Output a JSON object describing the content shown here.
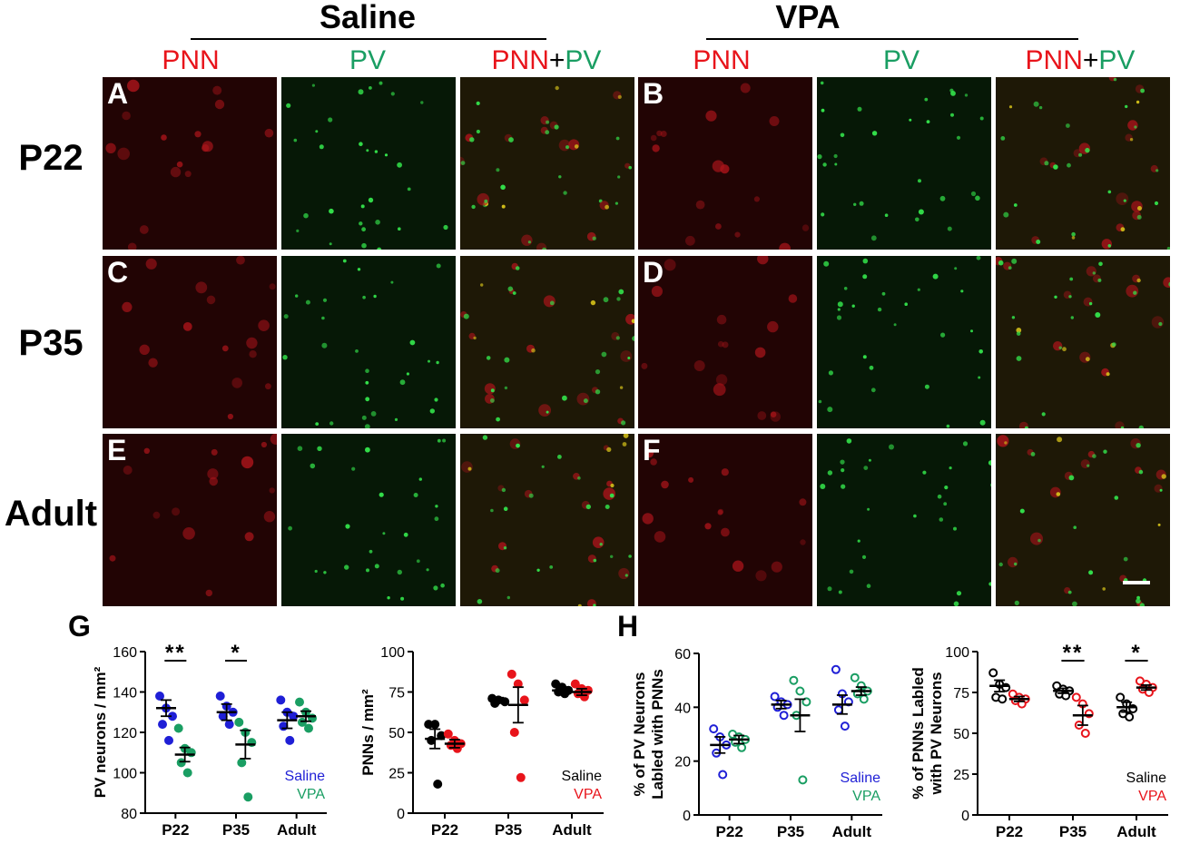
{
  "groups": [
    "Saline",
    "VPA"
  ],
  "columns": {
    "pnn": "PNN",
    "pv": "PV",
    "merge_a": "PNN",
    "merge_plus": "+",
    "merge_b": "PV"
  },
  "rows": [
    "P22",
    "P35",
    "Adult"
  ],
  "panel_letters": [
    "A",
    "B",
    "C",
    "D",
    "E",
    "F"
  ],
  "figure_letters": {
    "g": "G",
    "h": "H"
  },
  "colors": {
    "red": "#e8141b",
    "green": "#1a9e63",
    "blue": "#1f1fd6",
    "black": "#000000"
  },
  "chart_data": [
    {
      "id": "g1",
      "type": "scatter",
      "ylabel": "PV neurons / mm²",
      "ylim": [
        80,
        160
      ],
      "yticks": [
        80,
        100,
        120,
        140,
        160
      ],
      "categories": [
        "P22",
        "P35",
        "Adult"
      ],
      "legend": [
        "Saline",
        "VPA"
      ],
      "legend_placement": "bottom-right",
      "series": [
        {
          "name": "Saline",
          "color": "#1f1fd6",
          "filled": true,
          "points": [
            [
              138,
              132,
              128,
              124,
              116
            ],
            [
              138,
              133,
              130,
              128,
              124
            ],
            [
              136,
              130,
              128,
              123,
              116
            ]
          ],
          "mean": [
            132,
            130,
            126
          ],
          "sem": [
            4,
            4,
            4
          ]
        },
        {
          "name": "VPA",
          "color": "#1a9e63",
          "filled": true,
          "points": [
            [
              122,
              112,
              110,
              105,
              100
            ],
            [
              125,
              120,
              115,
              105,
              88
            ],
            [
              135,
              130,
              127,
              125,
              122
            ]
          ],
          "mean": [
            109,
            114,
            128
          ],
          "sem": [
            3.5,
            7,
            2.5
          ]
        }
      ],
      "significance": [
        {
          "category": "P22",
          "label": "**"
        },
        {
          "category": "P35",
          "label": "*"
        }
      ]
    },
    {
      "id": "g2",
      "type": "scatter",
      "ylabel": "PNNs / mm²",
      "ylim": [
        0,
        100
      ],
      "yticks": [
        0,
        25,
        50,
        75,
        100
      ],
      "categories": [
        "P22",
        "P35",
        "Adult"
      ],
      "legend": [
        "Saline",
        "VPA"
      ],
      "legend_placement": "bottom-right",
      "series": [
        {
          "name": "Saline",
          "color": "#000000",
          "filled": true,
          "points": [
            [
              55,
              55,
              48,
              45,
              18
            ],
            [
              71,
              70,
              69,
              68
            ],
            [
              80,
              78,
              76,
              75,
              74
            ]
          ],
          "mean": [
            46,
            70,
            76
          ],
          "sem": [
            6,
            1.5,
            2
          ]
        },
        {
          "name": "VPA",
          "color": "#e8141b",
          "filled": true,
          "points": [
            [
              49,
              45,
              43,
              42,
              40
            ],
            [
              86,
              80,
              70,
              50,
              22
            ],
            [
              80,
              77,
              76,
              74,
              72
            ]
          ],
          "mean": [
            43,
            67,
            75
          ],
          "sem": [
            2.5,
            11,
            2
          ]
        }
      ],
      "significance": []
    },
    {
      "id": "h1",
      "type": "scatter",
      "ylabel_lines": [
        "% of PV Neurons",
        "Labled with PNNs"
      ],
      "ylim": [
        0,
        60
      ],
      "yticks": [
        0,
        20,
        40,
        60
      ],
      "categories": [
        "P22",
        "P35",
        "Adult"
      ],
      "legend": [
        "Saline",
        "VPA"
      ],
      "legend_placement": "bottom-right",
      "series": [
        {
          "name": "Saline",
          "color": "#1f1fd6",
          "filled": false,
          "points": [
            [
              32,
              29,
              26,
              23,
              15
            ],
            [
              44,
              42,
              41,
              40,
              37
            ],
            [
              54,
              45,
              42,
              39,
              33
            ]
          ],
          "mean": [
            26,
            41,
            41
          ],
          "sem": [
            3,
            1.5,
            3.5
          ]
        },
        {
          "name": "VPA",
          "color": "#1a9e63",
          "filled": false,
          "points": [
            [
              30,
              29,
              28,
              27,
              25
            ],
            [
              50,
              46,
              42,
              37,
              13
            ],
            [
              51,
              48,
              46,
              45,
              43
            ]
          ],
          "mean": [
            28,
            37,
            46
          ],
          "sem": [
            1.5,
            6,
            1.5
          ]
        }
      ],
      "significance": []
    },
    {
      "id": "h2",
      "type": "scatter",
      "ylabel_lines": [
        "% of PNNs Labled",
        "with PV Neurons"
      ],
      "ylim": [
        0,
        100
      ],
      "yticks": [
        0,
        25,
        50,
        75,
        100
      ],
      "categories": [
        "P22",
        "P35",
        "Adult"
      ],
      "legend": [
        "Saline",
        "VPA"
      ],
      "legend_placement": "bottom-right",
      "series": [
        {
          "name": "Saline",
          "color": "#000000",
          "filled": false,
          "points": [
            [
              87,
              80,
              78,
              72,
              71
            ],
            [
              79,
              77,
              76,
              74,
              73
            ],
            [
              72,
              68,
              65,
              62,
              60
            ]
          ],
          "mean": [
            79,
            76,
            66
          ],
          "sem": [
            3.5,
            1.5,
            3
          ]
        },
        {
          "name": "VPA",
          "color": "#e8141b",
          "filled": false,
          "points": [
            [
              74,
              72,
              71,
              70,
              68
            ],
            [
              72,
              68,
              62,
              55,
              50
            ],
            [
              82,
              80,
              78,
              77,
              75
            ]
          ],
          "mean": [
            71,
            61,
            78
          ],
          "sem": [
            1.5,
            6,
            1.5
          ]
        }
      ],
      "significance": [
        {
          "category": "P35",
          "label": "**"
        },
        {
          "category": "Adult",
          "label": "*"
        }
      ]
    }
  ]
}
